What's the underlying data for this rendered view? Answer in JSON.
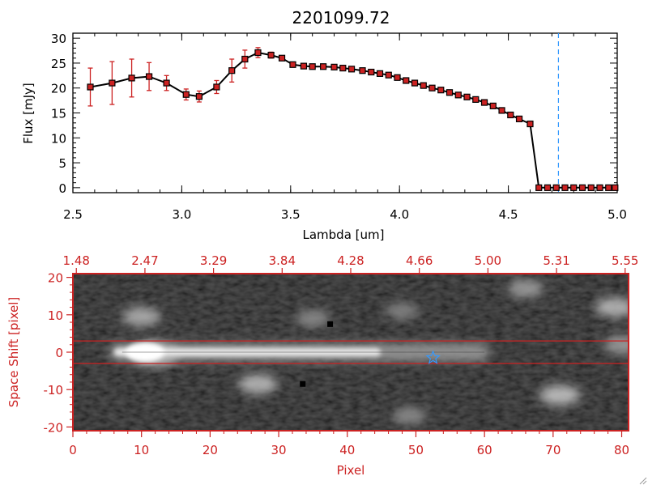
{
  "chart_data": [
    {
      "type": "line",
      "title": "2201099.72",
      "xlabel": "Lambda [um]",
      "ylabel": "Flux [mJy]",
      "xlim": [
        2.5,
        5.0
      ],
      "ylim": [
        -1,
        31
      ],
      "xticks": [
        "2.5",
        "3.0",
        "3.5",
        "4.0",
        "4.5",
        "5.0"
      ],
      "yticks": [
        "0",
        "5",
        "10",
        "15",
        "20",
        "25",
        "30"
      ],
      "grid": false,
      "line_color": "#000000",
      "marker_color": "#cc2222",
      "errorbar_color": "#cc2222",
      "marker_line_color": "#3399ff",
      "vertical_marker_x": 4.73,
      "series": [
        {
          "x": [
            2.58,
            2.68,
            2.77,
            2.85,
            2.93,
            3.02,
            3.08,
            3.16,
            3.23,
            3.29,
            3.35,
            3.41,
            3.46,
            3.51,
            3.56,
            3.6,
            3.65,
            3.7,
            3.74,
            3.78,
            3.83,
            3.87,
            3.91,
            3.95,
            3.99,
            4.03,
            4.07,
            4.11,
            4.15,
            4.19,
            4.23,
            4.27,
            4.31,
            4.35,
            4.39,
            4.43,
            4.47,
            4.51,
            4.55,
            4.6,
            4.64,
            4.68,
            4.72,
            4.76,
            4.8,
            4.84,
            4.88,
            4.92,
            4.96,
            4.99
          ],
          "y": [
            20.2,
            21.0,
            22.0,
            22.3,
            21.0,
            18.7,
            18.3,
            20.2,
            23.5,
            25.8,
            27.1,
            26.6,
            26.0,
            24.7,
            24.4,
            24.3,
            24.3,
            24.2,
            24.0,
            23.8,
            23.5,
            23.2,
            22.9,
            22.6,
            22.1,
            21.5,
            21.0,
            20.5,
            20.0,
            19.6,
            19.1,
            18.6,
            18.2,
            17.7,
            17.1,
            16.4,
            15.5,
            14.6,
            13.8,
            12.8,
            0,
            0,
            0,
            0,
            0,
            0,
            0,
            0,
            0,
            0
          ],
          "yerr": [
            3.8,
            4.3,
            3.8,
            2.8,
            1.5,
            1.1,
            1.1,
            1.3,
            2.3,
            1.8,
            1.0,
            0.6,
            0.5,
            0.4,
            0.3,
            0.3,
            0.3,
            0.3,
            0.3,
            0.3,
            0.3,
            0.3,
            0.3,
            0.3,
            0.3,
            0.3,
            0.3,
            0.3,
            0.3,
            0.3,
            0.3,
            0.3,
            0.3,
            0.3,
            0.3,
            0.3,
            0.3,
            0.3,
            0.3,
            0.3,
            0,
            0,
            0,
            0,
            0,
            0,
            0,
            0,
            0,
            0
          ]
        }
      ]
    },
    {
      "type": "heatmap",
      "xlabel": "Pixel",
      "ylabel": "Space Shift [pixel]",
      "xlim": [
        0,
        81
      ],
      "ylim": [
        -21,
        21
      ],
      "xticks": [
        "0",
        "10",
        "20",
        "30",
        "40",
        "50",
        "60",
        "70",
        "80"
      ],
      "yticks": [
        "-20",
        "-10",
        "0",
        "10",
        "20"
      ],
      "top_axis_ticks": [
        "1.48",
        "2.47",
        "3.29",
        "3.84",
        "4.28",
        "4.66",
        "5.00",
        "5.31",
        "5.55"
      ],
      "axis_color": "#cc2222",
      "extraction_aperture": [
        -3,
        3
      ],
      "star_marker": {
        "x": 52.5,
        "y": -1.5,
        "color": "#3399ff"
      },
      "trace": {
        "x_range": [
          6,
          60
        ],
        "center_y": 0,
        "color": "#ffffff"
      },
      "sources": [
        {
          "x": 10,
          "y": 9.5,
          "strength": 0.55
        },
        {
          "x": 12,
          "y": -0.5,
          "strength": 0.9
        },
        {
          "x": 27,
          "y": -8.5,
          "strength": 0.6
        },
        {
          "x": 35,
          "y": 9.0,
          "strength": 0.35
        },
        {
          "x": 48,
          "y": 11.0,
          "strength": 0.3
        },
        {
          "x": 49,
          "y": -17.0,
          "strength": 0.35
        },
        {
          "x": 66,
          "y": 17.0,
          "strength": 0.45
        },
        {
          "x": 71,
          "y": -11.5,
          "strength": 0.65
        },
        {
          "x": 79,
          "y": 12.0,
          "strength": 0.6
        },
        {
          "x": 80,
          "y": 2.0,
          "strength": 0.45
        }
      ],
      "dark_spots": [
        {
          "x": 33.5,
          "y": -8.5
        },
        {
          "x": 37.5,
          "y": 7.5
        }
      ]
    }
  ]
}
